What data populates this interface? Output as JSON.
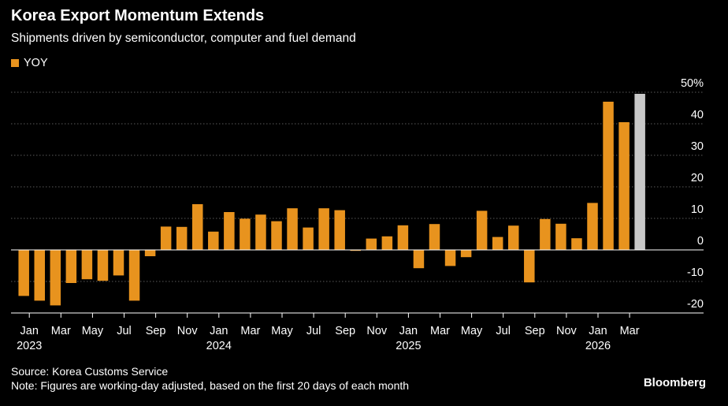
{
  "title": "Korea Export Momentum Extends",
  "subtitle": "Shipments driven by semiconductor, computer and fuel demand",
  "source": "Source: Korea Customs Service",
  "note": "Note: Figures are working-day adjusted, based on the first 20 days of each month",
  "brand": "Bloomberg",
  "colors": {
    "bar": "#E8931E",
    "latest": "#C8C8C8",
    "grid": "#5a5a5a",
    "axis": "#ffffff"
  },
  "chart_data": {
    "type": "bar",
    "legend": [
      "YOY"
    ],
    "unit_label": "50%",
    "ylim": [
      -25,
      52
    ],
    "yticks": [
      50,
      40,
      30,
      20,
      10,
      0,
      -10,
      -20
    ],
    "ytick_labels": [
      "50%",
      "40",
      "30",
      "20",
      "10",
      "0",
      "-10",
      "-20"
    ],
    "xtick_labels": [
      {
        "index": 0,
        "label": "Jan",
        "year": "2023"
      },
      {
        "index": 2,
        "label": "Mar"
      },
      {
        "index": 4,
        "label": "May"
      },
      {
        "index": 6,
        "label": "Jul"
      },
      {
        "index": 8,
        "label": "Sep"
      },
      {
        "index": 10,
        "label": "Nov"
      },
      {
        "index": 12,
        "label": "Jan",
        "year": "2024"
      },
      {
        "index": 14,
        "label": "Mar"
      },
      {
        "index": 16,
        "label": "May"
      },
      {
        "index": 18,
        "label": "Jul"
      },
      {
        "index": 20,
        "label": "Sep"
      },
      {
        "index": 22,
        "label": "Nov"
      },
      {
        "index": 24,
        "label": "Jan",
        "year": "2025"
      },
      {
        "index": 26,
        "label": "Mar"
      },
      {
        "index": 28,
        "label": "May"
      },
      {
        "index": 30,
        "label": "Jul"
      },
      {
        "index": 32,
        "label": "Sep"
      },
      {
        "index": 34,
        "label": "Nov"
      },
      {
        "index": 36,
        "label": "Jan",
        "year": "2026"
      },
      {
        "index": 38,
        "label": "Mar"
      }
    ],
    "categories": [
      "Jan 2023",
      "Feb 2023",
      "Mar 2023",
      "Apr 2023",
      "May 2023",
      "Jun 2023",
      "Jul 2023",
      "Aug 2023",
      "Sep 2023",
      "Oct 2023",
      "Nov 2023",
      "Dec 2023",
      "Jan 2024",
      "Feb 2024",
      "Mar 2024",
      "Apr 2024",
      "May 2024",
      "Jun 2024",
      "Jul 2024",
      "Aug 2024",
      "Sep 2024",
      "Oct 2024",
      "Nov 2024",
      "Dec 2024",
      "Jan 2025",
      "Feb 2025",
      "Mar 2025",
      "Apr 2025",
      "May 2025",
      "Jun 2025",
      "Jul 2025",
      "Aug 2025",
      "Sep 2025",
      "Oct 2025",
      "Nov 2025",
      "Dec 2025",
      "Jan 2026",
      "Feb 2026",
      "Mar 2026",
      "Apr 2026"
    ],
    "series": [
      {
        "name": "YOY",
        "values": [
          -14.6,
          -16.1,
          -17.6,
          -10.5,
          -9.3,
          -9.8,
          -8.1,
          -16.1,
          -2.0,
          7.4,
          7.3,
          14.5,
          5.8,
          12.0,
          9.9,
          11.2,
          9.1,
          13.2,
          7.1,
          13.2,
          12.6,
          -0.3,
          3.6,
          4.3,
          7.8,
          -5.8,
          8.2,
          -5.1,
          -2.3,
          12.4,
          4.1,
          7.7,
          -10.3,
          9.8,
          8.3,
          3.7,
          14.9,
          47.0,
          40.5,
          49.5
        ],
        "highlight_last": true
      }
    ]
  }
}
